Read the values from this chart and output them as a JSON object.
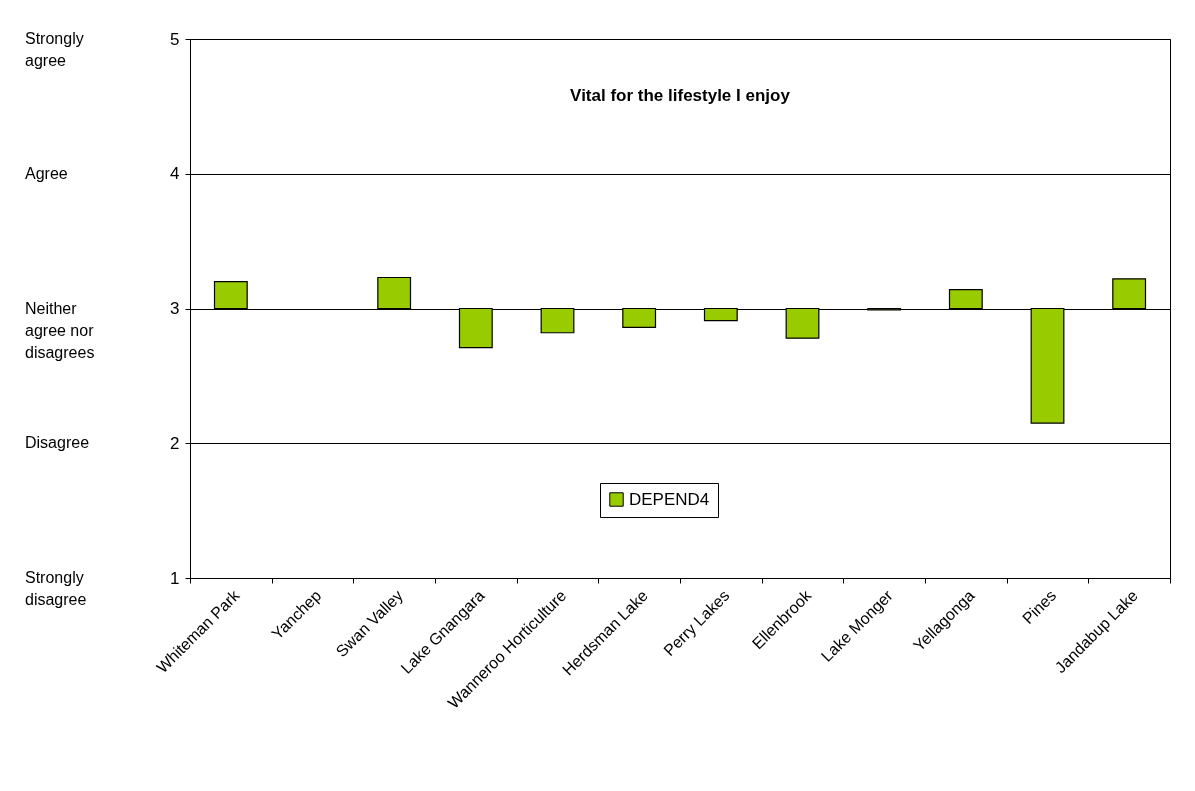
{
  "chart_data": {
    "type": "bar",
    "title": "Vital for the lifestyle I enjoy",
    "categories": [
      "Whiteman Park",
      "Yanchep",
      "Swan Valley",
      "Lake Gnangara",
      "Wanneroo Horticulture",
      "Herdsman Lake",
      "Perry Lakes",
      "Ellenbrook",
      "Lake Monger",
      "Yellagonga",
      "Pines",
      "Jandabup Lake"
    ],
    "series": [
      {
        "name": "DEPEND4",
        "color": "#99cc00",
        "base": [
          3,
          null,
          3,
          3,
          3,
          3,
          3,
          3,
          3,
          3,
          3,
          3
        ],
        "values": [
          0.2,
          null,
          0.23,
          -0.29,
          -0.18,
          -0.14,
          -0.09,
          -0.22,
          -0.01,
          0.14,
          -0.85,
          0.22
        ]
      }
    ],
    "ylim": [
      1,
      5
    ],
    "yticks": [
      1,
      2,
      3,
      4,
      5
    ],
    "grid": "y",
    "legend": "bottom",
    "annotations": [
      "Strongly agree",
      "Agree",
      "Neither agree nor disagrees",
      "Disagree",
      "Strongly disagree"
    ]
  }
}
